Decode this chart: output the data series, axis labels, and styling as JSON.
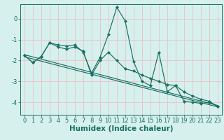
{
  "xlabel": "Humidex (Indice chaleur)",
  "xlim": [
    -0.5,
    23.5
  ],
  "ylim": [
    -4.6,
    0.7
  ],
  "background_color": "#d6f0ee",
  "grid_color": "#e8c8c8",
  "line_color": "#1a7060",
  "line1_x": [
    0,
    1,
    2,
    3,
    4,
    5,
    6,
    7,
    8,
    9,
    10,
    11,
    12,
    13,
    14,
    15,
    16,
    17,
    18,
    19,
    20,
    21,
    22,
    23
  ],
  "line1_y": [
    -1.75,
    -2.1,
    -1.8,
    -1.15,
    -1.25,
    -1.3,
    -1.25,
    -1.6,
    -2.6,
    -1.85,
    -0.75,
    0.55,
    -0.1,
    -2.05,
    -3.0,
    -3.2,
    -1.6,
    -3.5,
    -3.2,
    -3.95,
    -4.0,
    -4.05,
    -4.0,
    -4.2
  ],
  "line2_x": [
    0,
    1,
    2,
    3,
    4,
    5,
    6,
    7,
    8,
    9,
    10,
    11,
    12,
    13,
    14,
    15,
    16,
    17,
    18,
    19,
    20,
    21,
    22,
    23
  ],
  "line2_y": [
    -1.75,
    -2.1,
    -1.82,
    -1.15,
    -1.35,
    -1.45,
    -1.35,
    -1.55,
    -2.7,
    -2.0,
    -1.6,
    -2.0,
    -2.4,
    -2.5,
    -2.7,
    -2.85,
    -3.0,
    -3.15,
    -3.2,
    -3.5,
    -3.7,
    -3.85,
    -3.95,
    -4.2
  ],
  "line3_x": [
    0,
    23
  ],
  "line3_y": [
    -1.72,
    -4.15
  ],
  "line4_x": [
    0,
    23
  ],
  "line4_y": [
    -1.82,
    -4.22
  ],
  "yticks": [
    -4,
    -3,
    -2,
    -1,
    0
  ],
  "ytick_labels": [
    "-4",
    "-3",
    "-2",
    "-1",
    "0"
  ],
  "tick_fontsize": 6.0,
  "xlabel_fontsize": 7.5
}
